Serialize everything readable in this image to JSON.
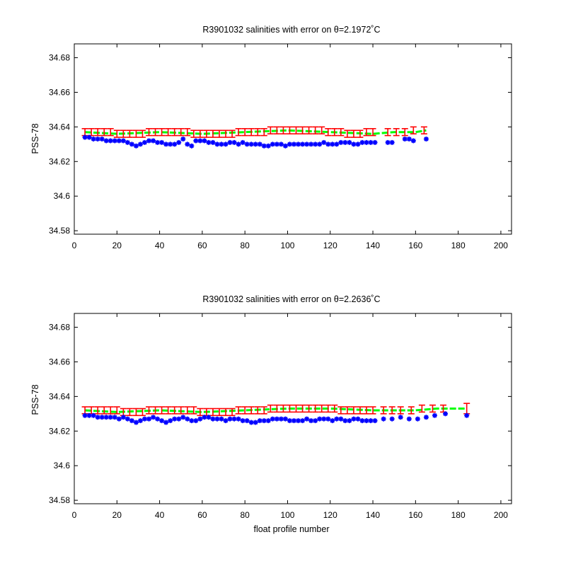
{
  "chart_data": [
    {
      "type": "scatter",
      "title": "R3901032 salinities with error on θ=2.1972˚C",
      "xlabel": "",
      "ylabel": "PSS-78",
      "xlim": [
        0,
        205
      ],
      "ylim": [
        34.578,
        34.688
      ],
      "xticks": [
        "0",
        "20",
        "40",
        "60",
        "80",
        "100",
        "120",
        "140",
        "160",
        "180",
        "200"
      ],
      "yticks": [
        "34.58",
        "34.6",
        "34.62",
        "34.64",
        "34.66",
        "34.68"
      ],
      "series": [
        {
          "role": "float-salinity",
          "color": "#0000ff",
          "marker": "star",
          "x": [
            5,
            7,
            9,
            11,
            13,
            15,
            17,
            19,
            21,
            23,
            25,
            27,
            29,
            31,
            33,
            35,
            37,
            39,
            41,
            43,
            45,
            47,
            49,
            51,
            53,
            55,
            57,
            59,
            61,
            63,
            65,
            67,
            69,
            71,
            73,
            75,
            77,
            79,
            81,
            83,
            85,
            87,
            89,
            91,
            93,
            95,
            97,
            99,
            101,
            103,
            105,
            107,
            109,
            111,
            113,
            115,
            117,
            119,
            121,
            123,
            125,
            127,
            129,
            131,
            133,
            135,
            137,
            139,
            141,
            147,
            149,
            155,
            157,
            159,
            165
          ],
          "y": [
            34.634,
            34.634,
            34.633,
            34.633,
            34.633,
            34.632,
            34.632,
            34.632,
            34.632,
            34.632,
            34.631,
            34.63,
            34.629,
            34.63,
            34.631,
            34.632,
            34.632,
            34.631,
            34.631,
            34.63,
            34.63,
            34.63,
            34.631,
            34.633,
            34.63,
            34.629,
            34.632,
            34.632,
            34.632,
            34.631,
            34.631,
            34.63,
            34.63,
            34.63,
            34.631,
            34.631,
            34.63,
            34.631,
            34.63,
            34.63,
            34.63,
            34.63,
            34.629,
            34.629,
            34.63,
            34.63,
            34.63,
            34.629,
            34.63,
            34.63,
            34.63,
            34.63,
            34.63,
            34.63,
            34.63,
            34.63,
            34.631,
            34.63,
            34.63,
            34.63,
            34.631,
            34.631,
            34.631,
            34.63,
            34.63,
            34.631,
            34.631,
            34.631,
            34.631,
            34.631,
            34.631,
            34.633,
            34.633,
            34.632,
            34.633
          ]
        },
        {
          "role": "mapped-salinity-with-error",
          "color": "#ff0000",
          "marker": "errorbar",
          "x": [
            5,
            8,
            11,
            14,
            17,
            20,
            23,
            26,
            29,
            32,
            35,
            38,
            41,
            44,
            47,
            50,
            53,
            56,
            59,
            62,
            65,
            68,
            71,
            74,
            77,
            80,
            83,
            86,
            89,
            92,
            95,
            98,
            101,
            104,
            107,
            110,
            113,
            116,
            119,
            122,
            125,
            128,
            131,
            134,
            137,
            140,
            147,
            151,
            155,
            159,
            164
          ],
          "y": [
            34.637,
            34.637,
            34.637,
            34.637,
            34.637,
            34.636,
            34.636,
            34.636,
            34.636,
            34.636,
            34.637,
            34.637,
            34.637,
            34.637,
            34.637,
            34.637,
            34.637,
            34.636,
            34.636,
            34.636,
            34.636,
            34.636,
            34.636,
            34.636,
            34.637,
            34.637,
            34.637,
            34.637,
            34.637,
            34.638,
            34.638,
            34.638,
            34.638,
            34.638,
            34.638,
            34.638,
            34.638,
            34.638,
            34.637,
            34.637,
            34.637,
            34.636,
            34.636,
            34.636,
            34.637,
            34.637,
            34.637,
            34.637,
            34.637,
            34.638,
            34.638
          ],
          "err": [
            0.002,
            0.002,
            0.002,
            0.002,
            0.002,
            0.002,
            0.002,
            0.002,
            0.002,
            0.002,
            0.002,
            0.002,
            0.002,
            0.002,
            0.002,
            0.002,
            0.002,
            0.002,
            0.002,
            0.002,
            0.002,
            0.002,
            0.002,
            0.002,
            0.002,
            0.002,
            0.002,
            0.002,
            0.002,
            0.002,
            0.002,
            0.002,
            0.002,
            0.002,
            0.002,
            0.002,
            0.002,
            0.002,
            0.002,
            0.002,
            0.002,
            0.002,
            0.002,
            0.002,
            0.002,
            0.002,
            0.002,
            0.002,
            0.002,
            0.002,
            0.002
          ]
        },
        {
          "role": "mapped-salinity-line",
          "color": "#00ff00",
          "marker": "line",
          "x": [
            5,
            20,
            40,
            60,
            80,
            100,
            120,
            140,
            150,
            160,
            165
          ],
          "y": [
            34.637,
            34.636,
            34.637,
            34.636,
            34.637,
            34.638,
            34.637,
            34.636,
            34.637,
            34.637,
            34.638
          ]
        }
      ]
    },
    {
      "type": "scatter",
      "title": "R3901032 salinities with error on θ=2.2636˚C",
      "xlabel": "float profile number",
      "ylabel": "PSS-78",
      "xlim": [
        0,
        205
      ],
      "ylim": [
        34.578,
        34.688
      ],
      "xticks": [
        "0",
        "20",
        "40",
        "60",
        "80",
        "100",
        "120",
        "140",
        "160",
        "180",
        "200"
      ],
      "yticks": [
        "34.58",
        "34.6",
        "34.62",
        "34.64",
        "34.66",
        "34.68"
      ],
      "series": [
        {
          "role": "float-salinity",
          "color": "#0000ff",
          "marker": "star",
          "x": [
            5,
            7,
            9,
            11,
            13,
            15,
            17,
            19,
            21,
            23,
            25,
            27,
            29,
            31,
            33,
            35,
            37,
            39,
            41,
            43,
            45,
            47,
            49,
            51,
            53,
            55,
            57,
            59,
            61,
            63,
            65,
            67,
            69,
            71,
            73,
            75,
            77,
            79,
            81,
            83,
            85,
            87,
            89,
            91,
            93,
            95,
            97,
            99,
            101,
            103,
            105,
            107,
            109,
            111,
            113,
            115,
            117,
            119,
            121,
            123,
            125,
            127,
            129,
            131,
            133,
            135,
            137,
            139,
            141,
            145,
            149,
            153,
            157,
            161,
            165,
            169,
            174,
            184
          ],
          "y": [
            34.629,
            34.629,
            34.629,
            34.628,
            34.628,
            34.628,
            34.628,
            34.628,
            34.627,
            34.628,
            34.627,
            34.626,
            34.625,
            34.626,
            34.627,
            34.627,
            34.628,
            34.627,
            34.626,
            34.625,
            34.626,
            34.627,
            34.627,
            34.628,
            34.627,
            34.626,
            34.626,
            34.627,
            34.628,
            34.628,
            34.627,
            34.627,
            34.627,
            34.626,
            34.627,
            34.627,
            34.627,
            34.626,
            34.626,
            34.625,
            34.625,
            34.626,
            34.626,
            34.626,
            34.627,
            34.627,
            34.627,
            34.627,
            34.626,
            34.626,
            34.626,
            34.626,
            34.627,
            34.626,
            34.626,
            34.627,
            34.627,
            34.627,
            34.626,
            34.627,
            34.627,
            34.626,
            34.626,
            34.627,
            34.627,
            34.626,
            34.626,
            34.626,
            34.626,
            34.627,
            34.627,
            34.628,
            34.627,
            34.627,
            34.628,
            34.629,
            34.63,
            34.629
          ]
        },
        {
          "role": "mapped-salinity-with-error",
          "color": "#ff0000",
          "marker": "errorbar",
          "x": [
            5,
            8,
            11,
            14,
            17,
            20,
            23,
            26,
            29,
            32,
            35,
            38,
            41,
            44,
            47,
            50,
            53,
            56,
            59,
            62,
            65,
            68,
            71,
            74,
            77,
            80,
            83,
            86,
            89,
            92,
            95,
            98,
            101,
            104,
            107,
            110,
            113,
            116,
            119,
            122,
            125,
            128,
            131,
            134,
            137,
            140,
            145,
            149,
            153,
            158,
            163,
            168,
            173,
            184
          ],
          "y": [
            34.632,
            34.632,
            34.632,
            34.632,
            34.632,
            34.632,
            34.631,
            34.631,
            34.631,
            34.631,
            34.632,
            34.632,
            34.632,
            34.632,
            34.632,
            34.632,
            34.632,
            34.632,
            34.631,
            34.631,
            34.631,
            34.631,
            34.631,
            34.631,
            34.632,
            34.632,
            34.632,
            34.632,
            34.632,
            34.633,
            34.633,
            34.633,
            34.633,
            34.633,
            34.633,
            34.633,
            34.633,
            34.633,
            34.633,
            34.633,
            34.632,
            34.632,
            34.632,
            34.632,
            34.632,
            34.632,
            34.632,
            34.632,
            34.632,
            34.632,
            34.633,
            34.633,
            34.633,
            34.633
          ],
          "err": [
            0.002,
            0.002,
            0.002,
            0.002,
            0.002,
            0.002,
            0.002,
            0.002,
            0.002,
            0.002,
            0.002,
            0.002,
            0.002,
            0.002,
            0.002,
            0.002,
            0.002,
            0.002,
            0.002,
            0.002,
            0.002,
            0.002,
            0.002,
            0.002,
            0.002,
            0.002,
            0.002,
            0.002,
            0.002,
            0.002,
            0.002,
            0.002,
            0.002,
            0.002,
            0.002,
            0.002,
            0.002,
            0.002,
            0.002,
            0.002,
            0.002,
            0.002,
            0.002,
            0.002,
            0.002,
            0.002,
            0.002,
            0.002,
            0.002,
            0.002,
            0.002,
            0.002,
            0.002,
            0.003
          ]
        },
        {
          "role": "mapped-salinity-line",
          "color": "#00ff00",
          "marker": "line",
          "x": [
            5,
            20,
            40,
            60,
            80,
            100,
            120,
            140,
            150,
            160,
            170,
            184
          ],
          "y": [
            34.632,
            34.631,
            34.632,
            34.631,
            34.632,
            34.633,
            34.633,
            34.632,
            34.632,
            34.632,
            34.633,
            34.633
          ]
        }
      ]
    }
  ]
}
